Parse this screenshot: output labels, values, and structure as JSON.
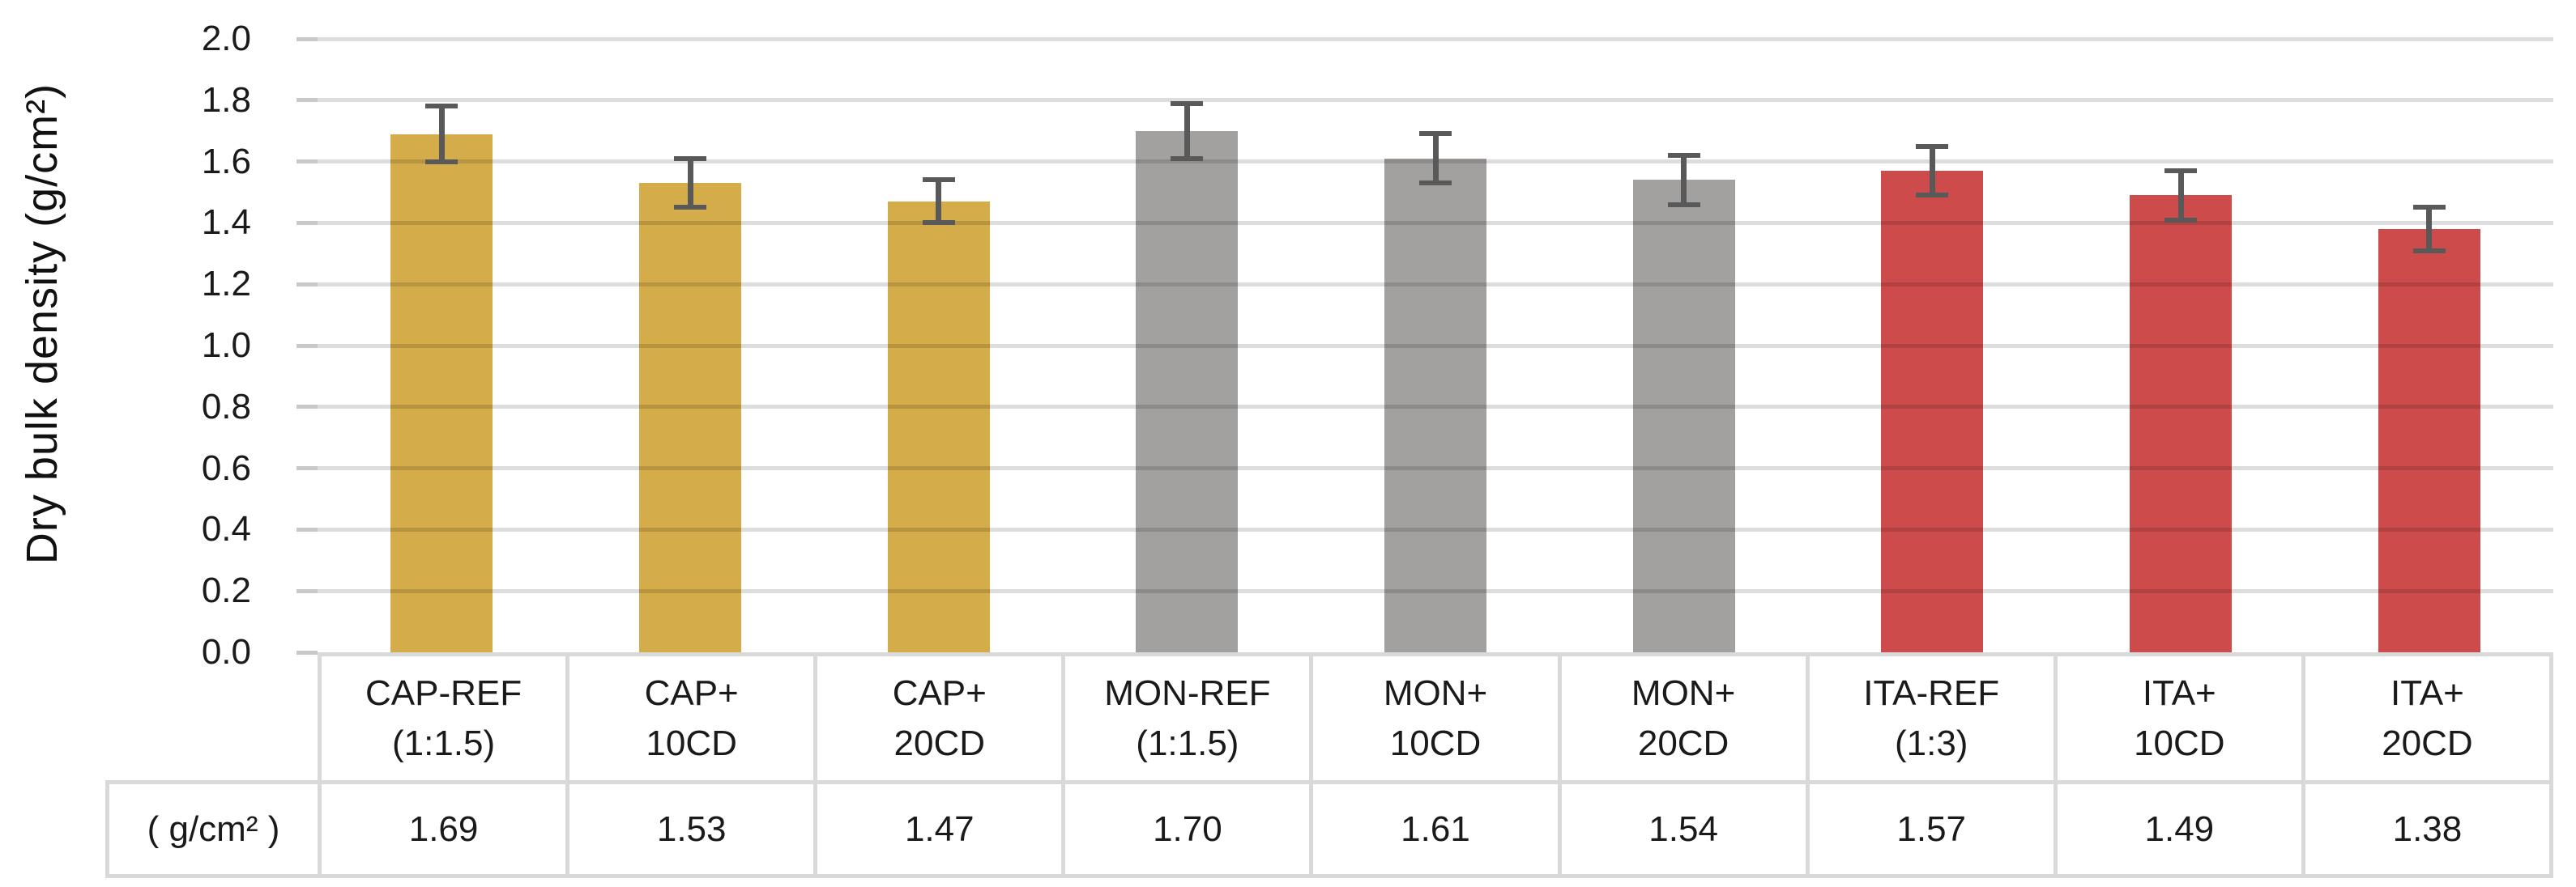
{
  "chart_data": {
    "type": "bar",
    "title": "",
    "ylabel": "Dry bulk density (g/cm²)",
    "xlabel": "",
    "ylim": [
      0.0,
      2.0
    ],
    "ytick_step": 0.2,
    "ytick_labels": [
      "2.0",
      "1.8",
      "1.6",
      "1.4",
      "1.2",
      "1.0",
      "0.8",
      "0.6",
      "0.4",
      "0.2",
      "0.0"
    ],
    "grid": true,
    "legend_position": "none",
    "table_row_header": "( g/cm² )",
    "categories": [
      {
        "line1": "CAP-REF",
        "line2": "(1:1.5)",
        "label": "CAP-REF (1:1.5)"
      },
      {
        "line1": "CAP+",
        "line2": "10CD",
        "label": "CAP+ 10CD"
      },
      {
        "line1": "CAP+",
        "line2": "20CD",
        "label": "CAP+ 20CD"
      },
      {
        "line1": "MON-REF",
        "line2": "(1:1.5)",
        "label": "MON-REF (1:1.5)"
      },
      {
        "line1": "MON+",
        "line2": "10CD",
        "label": "MON+ 10CD"
      },
      {
        "line1": "MON+",
        "line2": "20CD",
        "label": "MON+ 20CD"
      },
      {
        "line1": "ITA-REF",
        "line2": "(1:3)",
        "label": "ITA-REF (1:3)"
      },
      {
        "line1": "ITA+",
        "line2": "10CD",
        "label": "ITA+ 10CD"
      },
      {
        "line1": "ITA+",
        "line2": "20CD",
        "label": "ITA+ 20CD"
      }
    ],
    "values": [
      1.69,
      1.53,
      1.47,
      1.7,
      1.61,
      1.54,
      1.57,
      1.49,
      1.38
    ],
    "value_labels": [
      "1.69",
      "1.53",
      "1.47",
      "1.70",
      "1.61",
      "1.54",
      "1.57",
      "1.49",
      "1.38"
    ],
    "errors": [
      0.09,
      0.08,
      0.07,
      0.09,
      0.08,
      0.08,
      0.08,
      0.08,
      0.07
    ],
    "bar_colors": [
      "#D4AC4A",
      "#D4AC4A",
      "#D4AC4A",
      "#A3A0A0",
      "#A3A0A0",
      "#A3A0A0",
      "#CE4B4B",
      "#CE4B4B",
      "#CE4B4B"
    ]
  },
  "colors": {
    "gold": "#D4AC4A",
    "gray": "#A3A0A0",
    "red": "#CE4B4B",
    "error_bar": "#595959",
    "gridline": "#dcdcdc",
    "table_border": "#d9d9d9",
    "text": "#1a1a1a"
  }
}
